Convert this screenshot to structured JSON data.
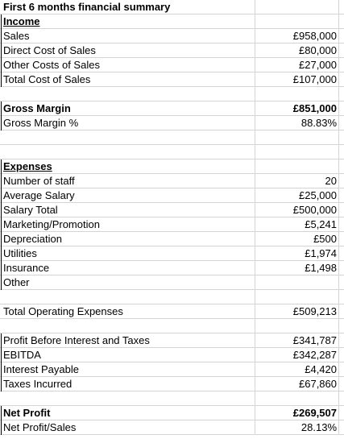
{
  "sheet": {
    "title": "First 6 months financial summary",
    "income_header": "Income",
    "sales_label": "Sales",
    "sales_value": "£958,000",
    "direct_cost_label": "Direct Cost of Sales",
    "direct_cost_value": "£80,000",
    "other_costs_label": "Other Costs of Sales",
    "other_costs_value": "£27,000",
    "total_cost_label": "Total Cost of Sales",
    "total_cost_value": "£107,000",
    "gross_margin_label": "Gross Margin",
    "gross_margin_value": "£851,000",
    "gross_margin_pct_label": "Gross Margin %",
    "gross_margin_pct_value": "88.83%",
    "expenses_header": "Expenses",
    "staff_label": "Number of staff",
    "staff_value": "20",
    "avg_salary_label": "Average Salary",
    "avg_salary_value": "£25,000",
    "salary_total_label": "Salary Total",
    "salary_total_value": "£500,000",
    "marketing_label": "Marketing/Promotion",
    "marketing_value": "£5,241",
    "depreciation_label": "Depreciation",
    "depreciation_value": "£500",
    "utilities_label": "Utilities",
    "utilities_value": "£1,974",
    "insurance_label": "Insurance",
    "insurance_value": "£1,498",
    "other_label": "Other",
    "total_opex_label": "Total Operating Expenses",
    "total_opex_value": "£509,213",
    "pbit_label": "Profit Before Interest and Taxes",
    "pbit_value": "£341,787",
    "ebitda_label": "EBITDA",
    "ebitda_value": "£342,287",
    "interest_label": "Interest Payable",
    "interest_value": "£4,420",
    "taxes_label": "Taxes Incurred",
    "taxes_value": "£67,860",
    "net_profit_label": "Net Profit",
    "net_profit_value": "£269,507",
    "net_profit_sales_label": "Net Profit/Sales",
    "net_profit_sales_value": "28.13%"
  }
}
